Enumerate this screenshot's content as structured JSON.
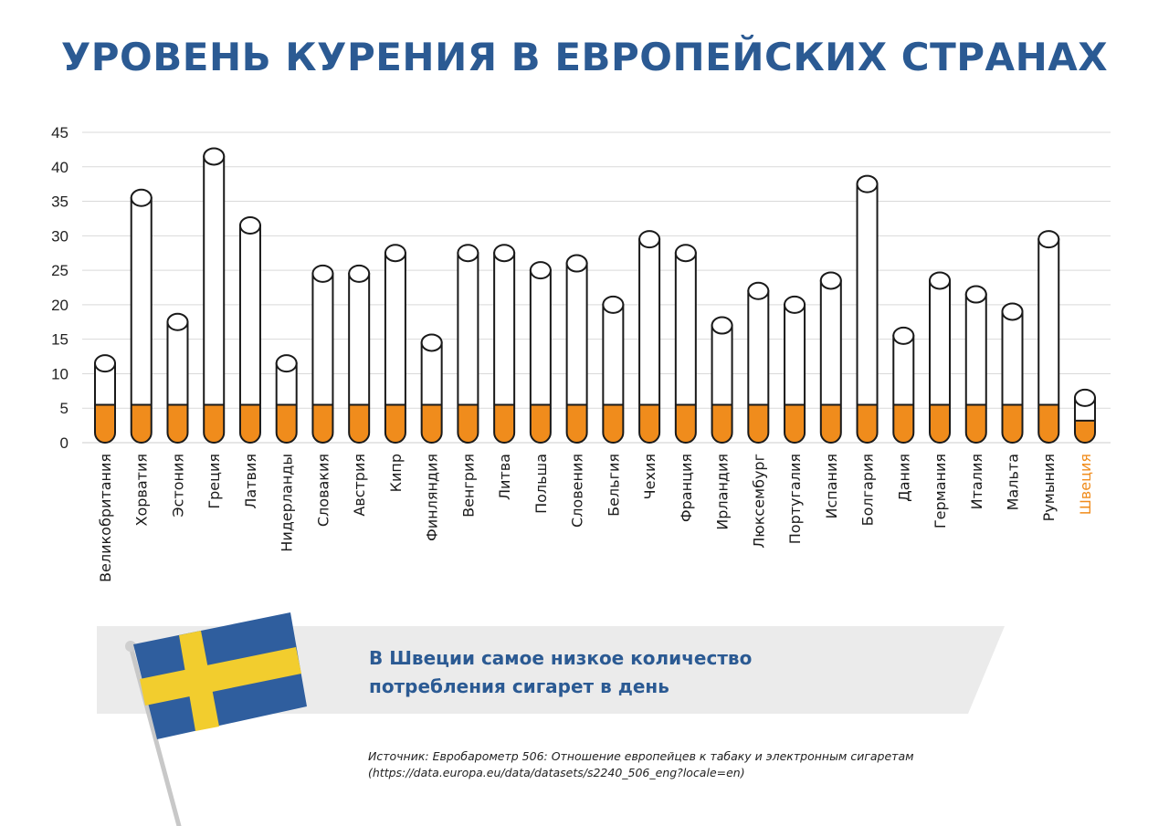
{
  "title": "УРОВЕНЬ КУРЕНИЯ В ЕВРОПЕЙСКИХ СТРАНАХ",
  "chart_data": {
    "type": "bar",
    "title": "УРОВЕНЬ КУРЕНИЯ В ЕВРОПЕЙСКИХ СТРАНАХ",
    "ylim": [
      0,
      45
    ],
    "yticks": [
      0,
      5,
      10,
      15,
      20,
      25,
      30,
      35,
      40,
      45
    ],
    "grid": true,
    "categories": [
      "Великобритания",
      "Хорватия",
      "Эстония",
      "Греция",
      "Латвия",
      "Нидерланды",
      "Словакия",
      "Австрия",
      "Кипр",
      "Финляндия",
      "Венгрия",
      "Литва",
      "Польша",
      "Словения",
      "Бельгия",
      "Чехия",
      "Франция",
      "Ирландия",
      "Люксембург",
      "Португалия",
      "Испания",
      "Болгария",
      "Дания",
      "Германия",
      "Италия",
      "Мальта",
      "Румыния",
      "Швеция"
    ],
    "values": [
      11.5,
      35.5,
      17.5,
      41.5,
      31.5,
      11.5,
      24.5,
      24.5,
      27.5,
      14.5,
      27.5,
      27.5,
      25,
      26,
      20,
      29.5,
      27.5,
      17,
      22,
      20,
      23.5,
      37.5,
      15.5,
      23.5,
      21.5,
      19,
      29.5,
      6.5
    ],
    "filter_values": [
      5.5,
      5.5,
      5.5,
      5.5,
      5.5,
      5.5,
      5.5,
      5.5,
      5.5,
      5.5,
      5.5,
      5.5,
      5.5,
      5.5,
      5.5,
      5.5,
      5.5,
      5.5,
      5.5,
      5.5,
      5.5,
      5.5,
      5.5,
      5.5,
      5.5,
      5.5,
      5.5,
      3.2
    ],
    "highlight": "Швеция"
  },
  "banner": {
    "line1": "В Швеции самое низкое количество",
    "line2": "потребления сигарет в день"
  },
  "source": {
    "line1": "Источник: Евробарометр 506: Отношение европейцев к табаку и электронным сигаретам",
    "line2": "(https://data.europa.eu/data/datasets/s2240_506_eng?locale=en)"
  },
  "colors": {
    "title": "#2b5a93",
    "filter": "#f08c1c",
    "highlight": "#f08c1c",
    "grid": "#d9d9d9",
    "banner_bg": "#ebebeb",
    "flag_blue": "#2f5e9e",
    "flag_yellow": "#f2cd2e"
  }
}
